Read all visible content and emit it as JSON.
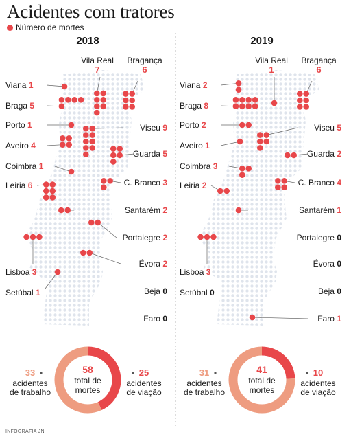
{
  "header": {
    "title": "Acidentes com tratores"
  },
  "legend": {
    "label": "Número de mortes"
  },
  "credit": "INFOGRAFIA JN",
  "colors": {
    "accent": "#e8474a",
    "accent_light": "#ee9c80",
    "dotted_map": "#dfe4ec",
    "text": "#1a1a1a",
    "divider": "#b8b8b8"
  },
  "chart_data": [
    {
      "type": "map",
      "title": "2018",
      "series": [
        {
          "name": "Número de mortes",
          "points": [
            {
              "label": "Viana",
              "value": 1
            },
            {
              "label": "Braga",
              "value": 5
            },
            {
              "label": "Porto",
              "value": 1
            },
            {
              "label": "Aveiro",
              "value": 4
            },
            {
              "label": "Coimbra",
              "value": 1
            },
            {
              "label": "Leiria",
              "value": 6
            },
            {
              "label": "Lisboa",
              "value": 3
            },
            {
              "label": "Setúbal",
              "value": 1
            },
            {
              "label": "Vila Real",
              "value": 7
            },
            {
              "label": "Bragança",
              "value": 6
            },
            {
              "label": "Viseu",
              "value": 9
            },
            {
              "label": "Guarda",
              "value": 5
            },
            {
              "label": "C. Branco",
              "value": 3
            },
            {
              "label": "Santarém",
              "value": 2
            },
            {
              "label": "Portalegre",
              "value": 2
            },
            {
              "label": "Évora",
              "value": 2
            },
            {
              "label": "Beja",
              "value": 0
            },
            {
              "label": "Faro",
              "value": 0
            }
          ]
        }
      ],
      "donut": {
        "total": 58,
        "total_label": "total de mortes",
        "slices": [
          {
            "label": "acidentes de trabalho",
            "value": 33
          },
          {
            "label": "acidentes de viação",
            "value": 25
          }
        ]
      }
    },
    {
      "type": "map",
      "title": "2019",
      "series": [
        {
          "name": "Número de mortes",
          "points": [
            {
              "label": "Viana",
              "value": 2
            },
            {
              "label": "Braga",
              "value": 8
            },
            {
              "label": "Porto",
              "value": 2
            },
            {
              "label": "Aveiro",
              "value": 1
            },
            {
              "label": "Coimbra",
              "value": 3
            },
            {
              "label": "Leiria",
              "value": 2
            },
            {
              "label": "Lisboa",
              "value": 3
            },
            {
              "label": "Setúbal",
              "value": 0
            },
            {
              "label": "Vila Real",
              "value": 1
            },
            {
              "label": "Bragança",
              "value": 6
            },
            {
              "label": "Viseu",
              "value": 5
            },
            {
              "label": "Guarda",
              "value": 2
            },
            {
              "label": "C. Branco",
              "value": 4
            },
            {
              "label": "Santarém",
              "value": 1
            },
            {
              "label": "Portalegre",
              "value": 0
            },
            {
              "label": "Évora",
              "value": 0
            },
            {
              "label": "Beja",
              "value": 0
            },
            {
              "label": "Faro",
              "value": 1
            }
          ]
        }
      ],
      "donut": {
        "total": 41,
        "total_label": "total de mortes",
        "slices": [
          {
            "label": "acidentes de trabalho",
            "value": 31
          },
          {
            "label": "acidentes de viação",
            "value": 10
          }
        ]
      }
    }
  ]
}
